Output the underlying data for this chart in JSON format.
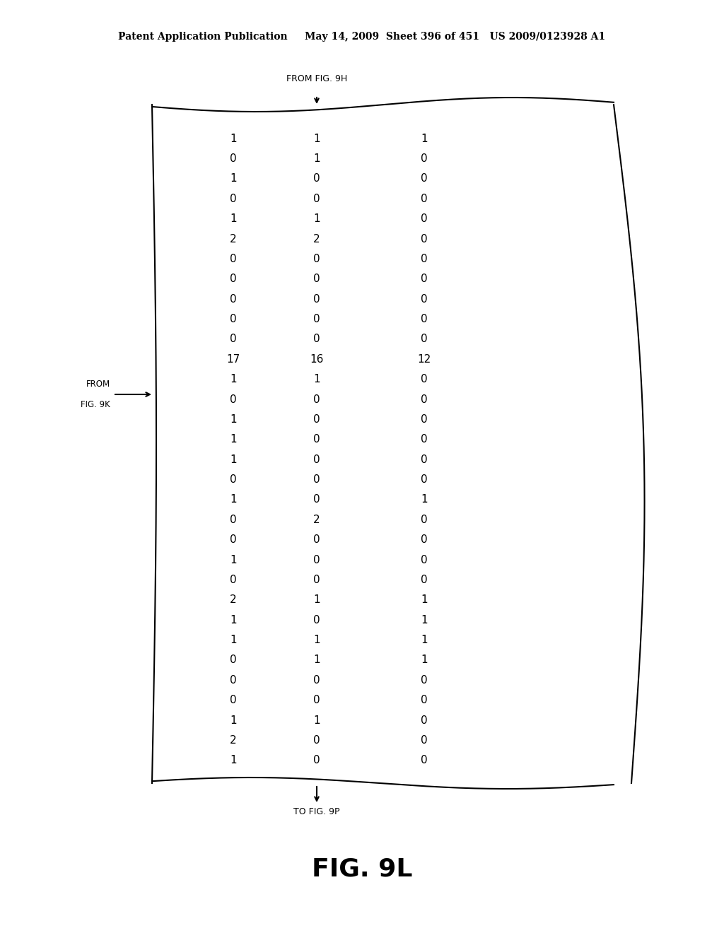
{
  "header_text": "Patent Application Publication     May 14, 2009  Sheet 396 of 451   US 2009/0123928 A1",
  "fig_label": "FIG. 9L",
  "from_top_label": "FROM FIG. 9H",
  "to_bottom_label": "TO FIG. 9P",
  "col1": [
    1,
    0,
    1,
    0,
    1,
    2,
    0,
    0,
    0,
    0,
    0,
    17,
    1,
    0,
    1,
    1,
    1,
    0,
    1,
    0,
    0,
    1,
    0,
    2,
    1,
    1,
    0,
    0,
    0,
    1,
    2,
    1
  ],
  "col2": [
    1,
    1,
    0,
    0,
    1,
    2,
    0,
    0,
    0,
    0,
    0,
    16,
    1,
    0,
    0,
    0,
    0,
    0,
    0,
    2,
    0,
    0,
    0,
    1,
    0,
    1,
    1,
    0,
    0,
    1,
    0,
    0
  ],
  "col3": [
    1,
    0,
    0,
    0,
    0,
    0,
    0,
    0,
    0,
    0,
    0,
    12,
    0,
    0,
    0,
    0,
    0,
    0,
    1,
    0,
    0,
    0,
    0,
    1,
    1,
    1,
    1,
    0,
    0,
    0,
    0,
    0
  ],
  "background_color": "#ffffff",
  "text_color": "#000000"
}
